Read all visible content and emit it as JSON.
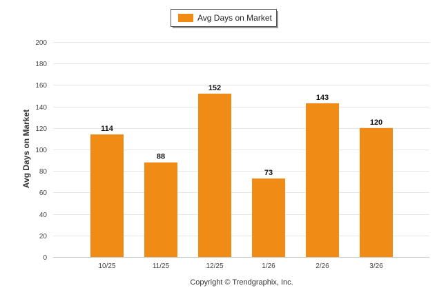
{
  "chart_data": {
    "type": "bar",
    "categories": [
      "10/25",
      "11/25",
      "12/25",
      "1/26",
      "2/26",
      "3/26"
    ],
    "series": [
      {
        "name": "Avg Days on Market",
        "values": [
          114,
          88,
          152,
          73,
          143,
          120
        ],
        "color": "#f08c16"
      }
    ],
    "ylabel": "Avg Days on Market",
    "ylim": [
      0,
      200
    ],
    "yticks": [
      0,
      20,
      40,
      60,
      80,
      100,
      120,
      140,
      160,
      180,
      200
    ],
    "grid": true,
    "legend": "top-center",
    "data_labels": true
  },
  "footer": {
    "copyright": "Copyright © Trendgraphix, Inc."
  }
}
